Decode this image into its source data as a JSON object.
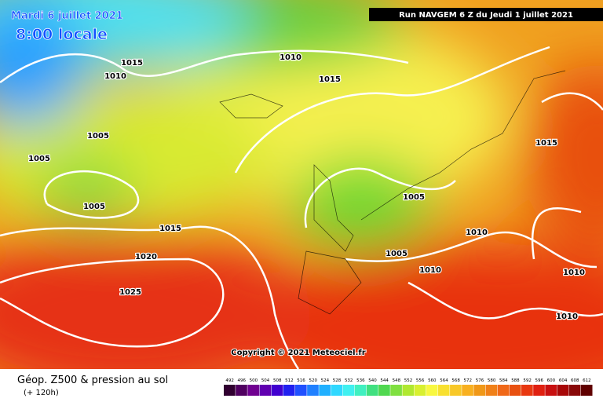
{
  "header": {
    "date": "Mardi 6 juillet 2021",
    "time": "8:00 locale",
    "run": "Run NAVGEM 6 Z du Jeudi 1 juillet 2021"
  },
  "copyright": "Copyright © 2021 Meteociel.fr",
  "legend": {
    "title": "Géop. Z500 & pression au sol",
    "lead": "(+ 120h)",
    "scale": [
      492,
      496,
      500,
      504,
      508,
      512,
      516,
      520,
      524,
      528,
      532,
      536,
      540,
      544,
      548,
      552,
      556,
      560,
      564,
      568,
      572,
      576,
      580,
      584,
      588,
      592,
      596,
      600,
      604,
      608,
      612
    ]
  },
  "isobars": [
    "1015",
    "1010",
    "1010",
    "1015",
    "1005",
    "1005",
    "1005",
    "1015",
    "1020",
    "1025",
    "1015",
    "1005",
    "1010",
    "1005",
    "1010",
    "1010",
    "1010"
  ]
}
